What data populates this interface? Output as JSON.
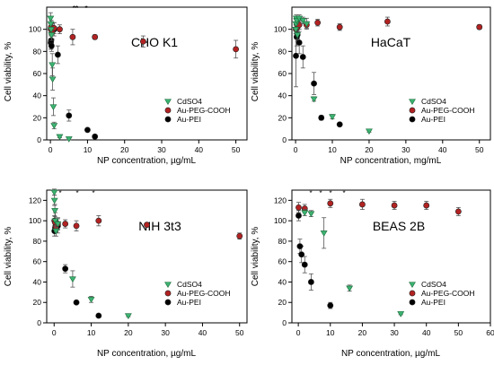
{
  "marker_colors": {
    "Au-PEI": "#000000",
    "Au-PEG-COOH": "#b22222",
    "CdSO4": "#3cb371"
  },
  "chart_data": [
    {
      "type": "scatter",
      "title": "CHO K1",
      "xlabel": "NP concentration, µg/mL",
      "ylabel": "Cell viability, %",
      "xlim": [
        -1,
        53
      ],
      "ylim": [
        0,
        120
      ],
      "xticks": [
        "0",
        "10",
        "20",
        "30",
        "40",
        "50"
      ],
      "yticks": [
        "0",
        "20",
        "40",
        "60",
        "80",
        "100"
      ],
      "legend": "bottom-right",
      "annotations": [
        "**",
        "*"
      ],
      "series": [
        {
          "name": "Au-PEI",
          "marker": "circle",
          "color": "#000000",
          "points": [
            [
              0.1,
              88,
              6
            ],
            [
              0.2,
              90,
              8
            ],
            [
              0.3,
              85,
              5
            ],
            [
              0.5,
              98,
              7
            ],
            [
              1,
              100,
              6
            ],
            [
              2,
              77,
              8
            ],
            [
              5,
              22,
              5
            ],
            [
              10,
              9,
              0
            ],
            [
              12,
              3,
              0
            ]
          ]
        },
        {
          "name": "Au-PEG-COOH",
          "marker": "circle",
          "color": "#b22222",
          "points": [
            [
              0.1,
              100,
              5
            ],
            [
              0.2,
              102,
              6
            ],
            [
              0.5,
              98,
              4
            ],
            [
              1,
              101,
              5
            ],
            [
              2.5,
              100,
              4
            ],
            [
              6,
              93,
              7
            ],
            [
              12,
              93,
              2
            ],
            [
              25,
              89,
              5
            ],
            [
              50,
              82,
              8
            ]
          ]
        },
        {
          "name": "CdSO4",
          "marker": "triangle",
          "color": "#3cb371",
          "points": [
            [
              0.05,
              110,
              5
            ],
            [
              0.1,
              105,
              6
            ],
            [
              0.2,
              100,
              8
            ],
            [
              0.3,
              95,
              5
            ],
            [
              0.5,
              68,
              10
            ],
            [
              0.6,
              55,
              10
            ],
            [
              0.8,
              30,
              8
            ],
            [
              1,
              13,
              3
            ],
            [
              2.5,
              3,
              1
            ],
            [
              5,
              1,
              1
            ]
          ]
        }
      ]
    },
    {
      "type": "scatter",
      "title": "HaCaT",
      "xlabel": "NP concentration, mg/mL",
      "ylabel": "Cell viability, %",
      "xlim": [
        -1,
        53
      ],
      "ylim": [
        0,
        120
      ],
      "xticks": [
        "0",
        "10",
        "20",
        "30",
        "40",
        "50"
      ],
      "yticks": [
        "0",
        "20",
        "40",
        "60",
        "80",
        "100"
      ],
      "legend": "bottom-right",
      "annotations": [],
      "series": [
        {
          "name": "Au-PEI",
          "marker": "circle",
          "color": "#000000",
          "points": [
            [
              0.1,
              76,
              28
            ],
            [
              0.3,
              93,
              8
            ],
            [
              0.5,
              95,
              6
            ],
            [
              1,
              88,
              10
            ],
            [
              2,
              75,
              10
            ],
            [
              5,
              51,
              10
            ],
            [
              7,
              20,
              2
            ],
            [
              12,
              14,
              1
            ]
          ]
        },
        {
          "name": "Au-PEG-COOH",
          "marker": "circle",
          "color": "#b22222",
          "points": [
            [
              0.1,
              100,
              4
            ],
            [
              0.3,
              105,
              4
            ],
            [
              0.5,
              102,
              4
            ],
            [
              1,
              104,
              4
            ],
            [
              3,
              104,
              3
            ],
            [
              6,
              106,
              3
            ],
            [
              12,
              102,
              3
            ],
            [
              25,
              107,
              4
            ],
            [
              50,
              102,
              2
            ]
          ]
        },
        {
          "name": "CdSO4",
          "marker": "triangle",
          "color": "#3cb371",
          "points": [
            [
              0.05,
              100,
              4
            ],
            [
              0.1,
              105,
              4
            ],
            [
              0.2,
              110,
              3
            ],
            [
              0.3,
              108,
              3
            ],
            [
              0.5,
              95,
              4
            ],
            [
              1,
              110,
              3
            ],
            [
              2,
              108,
              3
            ],
            [
              3,
              105,
              5
            ],
            [
              5,
              37,
              2
            ],
            [
              10,
              21,
              2
            ],
            [
              20,
              8,
              1
            ]
          ]
        }
      ]
    },
    {
      "type": "scatter",
      "title": "NIH 3t3",
      "xlabel": "NP concentration, µg/mL",
      "ylabel": "Cell viability, %",
      "xlim": [
        -2,
        52
      ],
      "ylim": [
        0,
        130
      ],
      "xticks": [
        "0",
        "10",
        "20",
        "30",
        "40",
        "50"
      ],
      "yticks": [
        "0",
        "20",
        "40",
        "60",
        "80",
        "100",
        "120"
      ],
      "legend": "bottom-right",
      "annotations": [
        "*",
        "*",
        "*"
      ],
      "series": [
        {
          "name": "Au-PEI",
          "marker": "circle",
          "color": "#000000",
          "points": [
            [
              0.1,
              90,
              5
            ],
            [
              0.3,
              93,
              5
            ],
            [
              0.5,
              96,
              6
            ],
            [
              1,
              95,
              7
            ],
            [
              3,
              53,
              4
            ],
            [
              6,
              20,
              1
            ],
            [
              12,
              7,
              1
            ]
          ]
        },
        {
          "name": "Au-PEG-COOH",
          "marker": "circle",
          "color": "#b22222",
          "points": [
            [
              0.1,
              100,
              5
            ],
            [
              0.3,
              98,
              4
            ],
            [
              0.5,
              94,
              5
            ],
            [
              1,
              97,
              6
            ],
            [
              3,
              97,
              4
            ],
            [
              6,
              95,
              5
            ],
            [
              12,
              100,
              5
            ],
            [
              25,
              96,
              2
            ],
            [
              50,
              85,
              3
            ]
          ]
        },
        {
          "name": "CdSO4",
          "marker": "triangle",
          "color": "#3cb371",
          "points": [
            [
              0.05,
              128,
              3
            ],
            [
              0.1,
              120,
              5
            ],
            [
              0.2,
              110,
              6
            ],
            [
              0.3,
              100,
              8
            ],
            [
              0.5,
              90,
              5
            ],
            [
              1,
              97,
              5
            ],
            [
              5,
              43,
              8
            ],
            [
              10,
              23,
              3
            ],
            [
              20,
              7,
              1
            ]
          ]
        }
      ]
    },
    {
      "type": "scatter",
      "title": "BEAS 2B",
      "xlabel": "NP concentration, µg/mL",
      "ylabel": "Cell viability, %",
      "xlim": [
        -2,
        60
      ],
      "ylim": [
        0,
        130
      ],
      "xticks": [
        "0",
        "10",
        "20",
        "30",
        "40",
        "50",
        "60"
      ],
      "yticks": [
        "0",
        "20",
        "40",
        "60",
        "80",
        "100",
        "120"
      ],
      "legend": "bottom-right",
      "annotations": [
        "*",
        "*",
        "*",
        "*"
      ],
      "series": [
        {
          "name": "Au-PEI",
          "marker": "circle",
          "color": "#000000",
          "points": [
            [
              0.1,
              105,
              5
            ],
            [
              0.5,
              75,
              7
            ],
            [
              1,
              67,
              8
            ],
            [
              2,
              57,
              8
            ],
            [
              4,
              40,
              8
            ],
            [
              10,
              17,
              3
            ]
          ]
        },
        {
          "name": "Au-PEG-COOH",
          "marker": "circle",
          "color": "#b22222",
          "points": [
            [
              0.1,
              113,
              5
            ],
            [
              2,
              112,
              4
            ],
            [
              10,
              117,
              4
            ],
            [
              20,
              116,
              5
            ],
            [
              30,
              115,
              4
            ],
            [
              40,
              115,
              4
            ],
            [
              50,
              109,
              4
            ]
          ]
        },
        {
          "name": "CdSO4",
          "marker": "triangle",
          "color": "#3cb371",
          "points": [
            [
              2,
              108,
              3
            ],
            [
              4,
              107,
              3
            ],
            [
              8,
              88,
              15
            ],
            [
              16,
              34,
              3
            ],
            [
              32,
              9,
              1
            ]
          ]
        }
      ]
    }
  ]
}
